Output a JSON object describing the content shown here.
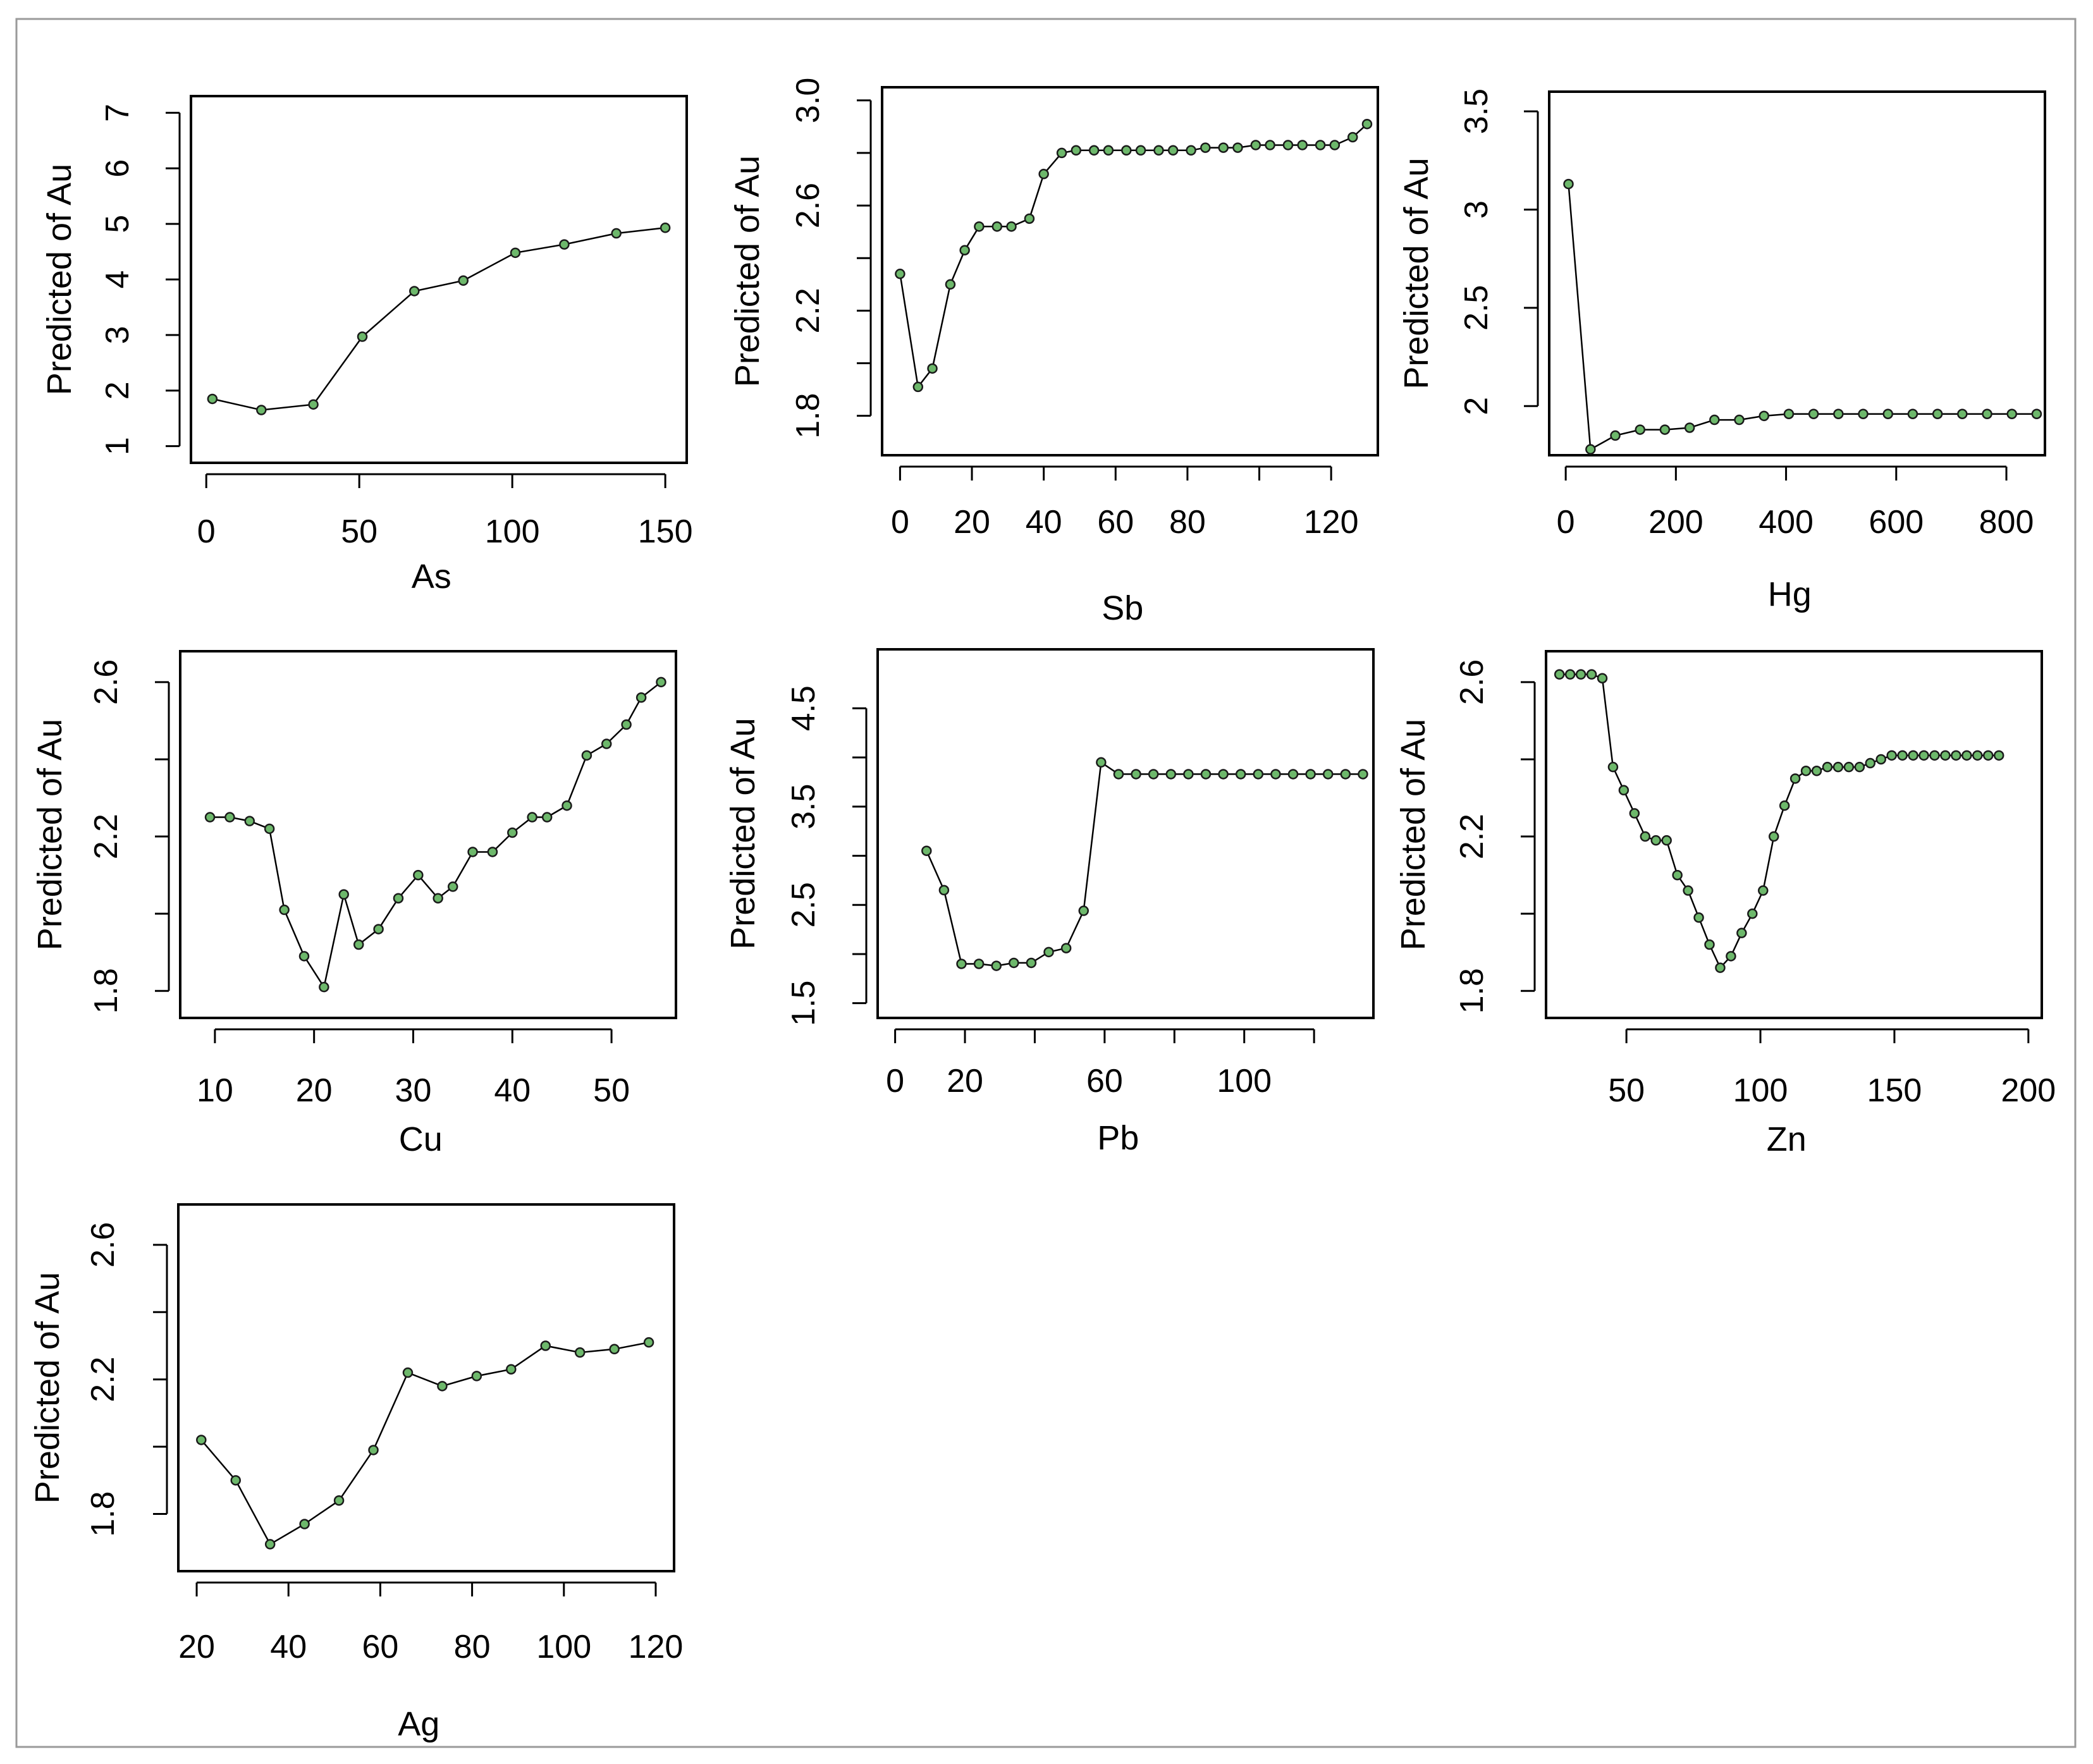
{
  "colors": {
    "background": "#ffffff",
    "frame": "#9a9a9a",
    "axis": "#000000",
    "line": "#000000",
    "marker_fill": "#6db86b",
    "marker_stroke": "#1a1a1a"
  },
  "chart_data": [
    {
      "id": "as",
      "type": "line",
      "title": "",
      "xlabel": "As",
      "ylabel": "Predicted of Au",
      "xlim": [
        -5,
        157
      ],
      "ylim": [
        0.7,
        7.3
      ],
      "xticks": [
        0,
        50,
        100,
        150
      ],
      "yticks": [
        1,
        2,
        3,
        4,
        5,
        6,
        7
      ],
      "x": [
        2,
        18,
        35,
        51,
        68,
        84,
        101,
        117,
        134,
        150
      ],
      "y": [
        1.85,
        1.65,
        1.75,
        2.97,
        3.79,
        3.98,
        4.48,
        4.63,
        4.83,
        4.93
      ]
    },
    {
      "id": "sb",
      "type": "line",
      "title": "",
      "xlabel": "Sb",
      "ylabel": "Predicted of Au",
      "xlim": [
        -5,
        133
      ],
      "ylim": [
        1.65,
        3.05
      ],
      "xticks": [
        0,
        20,
        40,
        60,
        80,
        100,
        120
      ],
      "xticklabels": [
        "0",
        "20",
        "40",
        "60",
        "80",
        "",
        "120"
      ],
      "yticks": [
        1.8,
        2.0,
        2.2,
        2.4,
        2.6,
        2.8,
        3.0
      ],
      "yticklabels": [
        "1.8",
        "",
        "2.2",
        "",
        "2.6",
        "",
        "3.0"
      ],
      "x": [
        0,
        5,
        9,
        14,
        18,
        22,
        27,
        31,
        36,
        40,
        45,
        49,
        54,
        58,
        63,
        67,
        72,
        76,
        81,
        85,
        90,
        94,
        99,
        103,
        108,
        112,
        117,
        121,
        126,
        130
      ],
      "y": [
        2.34,
        1.91,
        1.98,
        2.3,
        2.43,
        2.52,
        2.52,
        2.52,
        2.55,
        2.72,
        2.8,
        2.81,
        2.81,
        2.81,
        2.81,
        2.81,
        2.81,
        2.81,
        2.81,
        2.82,
        2.82,
        2.82,
        2.83,
        2.83,
        2.83,
        2.83,
        2.83,
        2.83,
        2.86,
        2.91
      ]
    },
    {
      "id": "hg",
      "type": "line",
      "title": "",
      "xlabel": "Hg",
      "ylabel": "Predicted of Au",
      "xlim": [
        -30,
        870
      ],
      "ylim": [
        1.75,
        3.6
      ],
      "xticks": [
        0,
        200,
        400,
        600,
        800
      ],
      "yticks": [
        2.0,
        2.5,
        3.0,
        3.5
      ],
      "x": [
        5,
        45,
        90,
        135,
        180,
        225,
        270,
        315,
        360,
        405,
        450,
        495,
        540,
        585,
        630,
        675,
        720,
        765,
        810,
        855
      ],
      "y": [
        3.13,
        1.78,
        1.85,
        1.88,
        1.88,
        1.89,
        1.93,
        1.93,
        1.95,
        1.96,
        1.96,
        1.96,
        1.96,
        1.96,
        1.96,
        1.96,
        1.96,
        1.96,
        1.96,
        1.96
      ]
    },
    {
      "id": "cu",
      "type": "line",
      "title": "",
      "xlabel": "Cu",
      "ylabel": "Predicted of Au",
      "xlim": [
        6.5,
        56.5
      ],
      "ylim": [
        1.73,
        2.68
      ],
      "xticks": [
        10,
        20,
        30,
        40,
        50
      ],
      "yticks": [
        1.8,
        2.0,
        2.2,
        2.4,
        2.6
      ],
      "yticklabels": [
        "1.8",
        "",
        "2.2",
        "",
        "2.6"
      ],
      "x": [
        9.5,
        11.5,
        13.5,
        15.5,
        17,
        19,
        21,
        23,
        24.5,
        26.5,
        28.5,
        30.5,
        32.5,
        34,
        36,
        38,
        40,
        42,
        43.5,
        45.5,
        47.5,
        49.5,
        51.5,
        53,
        55
      ],
      "y": [
        2.25,
        2.25,
        2.24,
        2.22,
        2.01,
        1.89,
        1.81,
        2.05,
        1.92,
        1.96,
        2.04,
        2.1,
        2.04,
        2.07,
        2.16,
        2.16,
        2.21,
        2.25,
        2.25,
        2.28,
        2.41,
        2.44,
        2.49,
        2.56,
        2.6
      ]
    },
    {
      "id": "pb",
      "type": "line",
      "title": "",
      "xlabel": "Pb",
      "ylabel": "Predicted of Au",
      "xlim": [
        -5,
        137
      ],
      "ylim": [
        1.35,
        5.1
      ],
      "xticks": [
        0,
        20,
        40,
        60,
        80,
        100,
        120
      ],
      "xticklabels": [
        "0",
        "20",
        "",
        "60",
        "",
        "100",
        ""
      ],
      "yticks": [
        1.5,
        2.0,
        2.5,
        3.0,
        3.5,
        4.0,
        4.5
      ],
      "yticklabels": [
        "1.5",
        "",
        "2.5",
        "",
        "3.5",
        "",
        "4.5"
      ],
      "x": [
        9,
        14,
        19,
        24,
        29,
        34,
        39,
        44,
        49,
        54,
        59,
        64,
        69,
        74,
        79,
        84,
        89,
        94,
        99,
        104,
        109,
        114,
        119,
        124,
        129,
        134
      ],
      "y": [
        3.05,
        2.65,
        1.9,
        1.9,
        1.88,
        1.91,
        1.91,
        2.02,
        2.06,
        2.44,
        3.95,
        3.83,
        3.83,
        3.83,
        3.83,
        3.83,
        3.83,
        3.83,
        3.83,
        3.83,
        3.83,
        3.83,
        3.83,
        3.83,
        3.83,
        3.83
      ]
    },
    {
      "id": "zn",
      "type": "line",
      "title": "",
      "xlabel": "Zn",
      "ylabel": "Predicted of Au",
      "xlim": [
        20,
        205
      ],
      "ylim": [
        1.73,
        2.68
      ],
      "xticks": [
        50,
        100,
        150,
        200
      ],
      "yticks": [
        1.8,
        2.0,
        2.2,
        2.4,
        2.6
      ],
      "yticklabels": [
        "1.8",
        "",
        "2.2",
        "",
        "2.6"
      ],
      "x": [
        25,
        29,
        33,
        37,
        41,
        45,
        49,
        53,
        57,
        61,
        65,
        69,
        73,
        77,
        81,
        85,
        89,
        93,
        97,
        101,
        105,
        109,
        113,
        117,
        121,
        125,
        129,
        133,
        137,
        141,
        145,
        149,
        153,
        157,
        161,
        165,
        169,
        173,
        177,
        181,
        185,
        189
      ],
      "y": [
        2.62,
        2.62,
        2.62,
        2.62,
        2.61,
        2.38,
        2.32,
        2.26,
        2.2,
        2.19,
        2.19,
        2.1,
        2.06,
        1.99,
        1.92,
        1.86,
        1.89,
        1.95,
        2.0,
        2.06,
        2.2,
        2.28,
        2.35,
        2.37,
        2.37,
        2.38,
        2.38,
        2.38,
        2.38,
        2.39,
        2.4,
        2.41,
        2.41,
        2.41,
        2.41,
        2.41,
        2.41,
        2.41,
        2.41,
        2.41,
        2.41,
        2.41
      ]
    },
    {
      "id": "ag",
      "type": "line",
      "title": "",
      "xlabel": "Ag",
      "ylabel": "Predicted of Au",
      "xlim": [
        16,
        124
      ],
      "ylim": [
        1.63,
        2.72
      ],
      "xticks": [
        20,
        40,
        60,
        80,
        100,
        120
      ],
      "yticks": [
        1.8,
        2.0,
        2.2,
        2.4,
        2.6
      ],
      "yticklabels": [
        "1.8",
        "",
        "2.2",
        "",
        "2.6"
      ],
      "x": [
        21,
        28.5,
        36,
        43.5,
        51,
        58.5,
        66,
        73.5,
        81,
        88.5,
        96,
        103.5,
        111,
        118.5
      ],
      "y": [
        2.02,
        1.9,
        1.71,
        1.77,
        1.84,
        1.99,
        2.22,
        2.18,
        2.21,
        2.23,
        2.3,
        2.28,
        2.29,
        2.31
      ]
    }
  ]
}
